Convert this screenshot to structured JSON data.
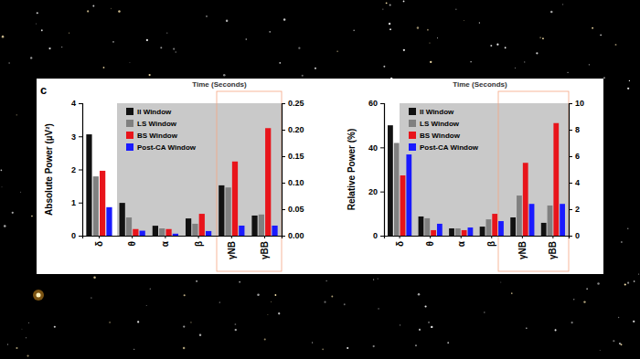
{
  "chart_data": [
    {
      "type": "bar",
      "title": "Time (Seconds)",
      "annotations": [
        "c"
      ],
      "y_label": "Absolute Power (µV²)",
      "categories": [
        "δ",
        "θ",
        "α",
        "β",
        "γNB",
        "γBB"
      ],
      "legend": "top-left",
      "ylim": [
        0,
        4
      ],
      "yticks": [
        0,
        1,
        2,
        3,
        4
      ],
      "y2lim": [
        0,
        0.25
      ],
      "y2ticks": [
        {
          "value": 0,
          "label": "0.00"
        },
        {
          "value": 0.05,
          "label": "0.05"
        },
        {
          "value": 0.1,
          "label": "0.10"
        },
        {
          "value": 0.15,
          "label": "0.15"
        },
        {
          "value": 0.2,
          "label": "0.20"
        },
        {
          "value": 0.25,
          "label": "0.25"
        }
      ],
      "series": [
        {
          "name": "II Window",
          "color": "#111111",
          "values": [
            3.06,
            0.99,
            0.3,
            0.52,
            null,
            null
          ]
        },
        {
          "name": "LS Window",
          "color": "#808080",
          "values": [
            1.79,
            0.55,
            0.22,
            0.36,
            null,
            null
          ]
        },
        {
          "name": "BS Window",
          "color": "#e8141b",
          "values": [
            1.96,
            0.2,
            0.2,
            0.66,
            null,
            null
          ]
        },
        {
          "name": "Post-CA Window",
          "color": "#1a1aff",
          "values": [
            0.86,
            0.15,
            0.06,
            0.14,
            null,
            null
          ]
        },
        {
          "color": "#111111",
          "axis": "y2",
          "values": [
            null,
            null,
            null,
            null,
            0.095,
            0.038
          ]
        },
        {
          "color": "#808080",
          "axis": "y2",
          "values": [
            null,
            null,
            null,
            null,
            0.091,
            0.04
          ]
        },
        {
          "color": "#e8141b",
          "axis": "y2",
          "values": [
            null,
            null,
            null,
            null,
            0.14,
            0.203
          ]
        },
        {
          "color": "#1a1aff",
          "axis": "y2",
          "values": [
            null,
            null,
            null,
            null,
            0.019,
            0.019
          ]
        }
      ]
    },
    {
      "type": "bar",
      "title": "Time (Seconds)",
      "y_label": "Relative  Power (%)",
      "categories": [
        "δ",
        "θ",
        "α",
        "β",
        "γNB",
        "γBB"
      ],
      "legend": "top-left",
      "ylim": [
        0,
        60
      ],
      "yticks": [
        0,
        20,
        40,
        60
      ],
      "y2lim": [
        0,
        10
      ],
      "y2ticks": [
        0,
        2,
        4,
        6,
        8,
        10
      ],
      "series": [
        {
          "name": "II Window",
          "color": "#111111",
          "values": [
            50,
            8.7,
            3.3,
            4.1,
            null,
            null
          ]
        },
        {
          "name": "LS Window",
          "color": "#808080",
          "values": [
            42,
            7.9,
            3.3,
            7.4,
            null,
            null
          ]
        },
        {
          "name": "BS Window",
          "color": "#e8141b",
          "values": [
            27.3,
            2.5,
            2.5,
            9.9,
            null,
            null
          ]
        },
        {
          "name": "Post-CA Window",
          "color": "#1a1aff",
          "values": [
            36.8,
            5.4,
            3.7,
            6.6,
            null,
            null
          ]
        },
        {
          "color": "#111111",
          "axis": "y2",
          "values": [
            null,
            null,
            null,
            null,
            1.38,
            0.97
          ]
        },
        {
          "color": "#808080",
          "axis": "y2",
          "values": [
            null,
            null,
            null,
            null,
            3.03,
            2.28
          ]
        },
        {
          "color": "#e8141b",
          "axis": "y2",
          "values": [
            null,
            null,
            null,
            null,
            5.5,
            8.5
          ]
        },
        {
          "color": "#1a1aff",
          "axis": "y2",
          "values": [
            null,
            null,
            null,
            null,
            2.4,
            2.4
          ]
        }
      ]
    }
  ]
}
